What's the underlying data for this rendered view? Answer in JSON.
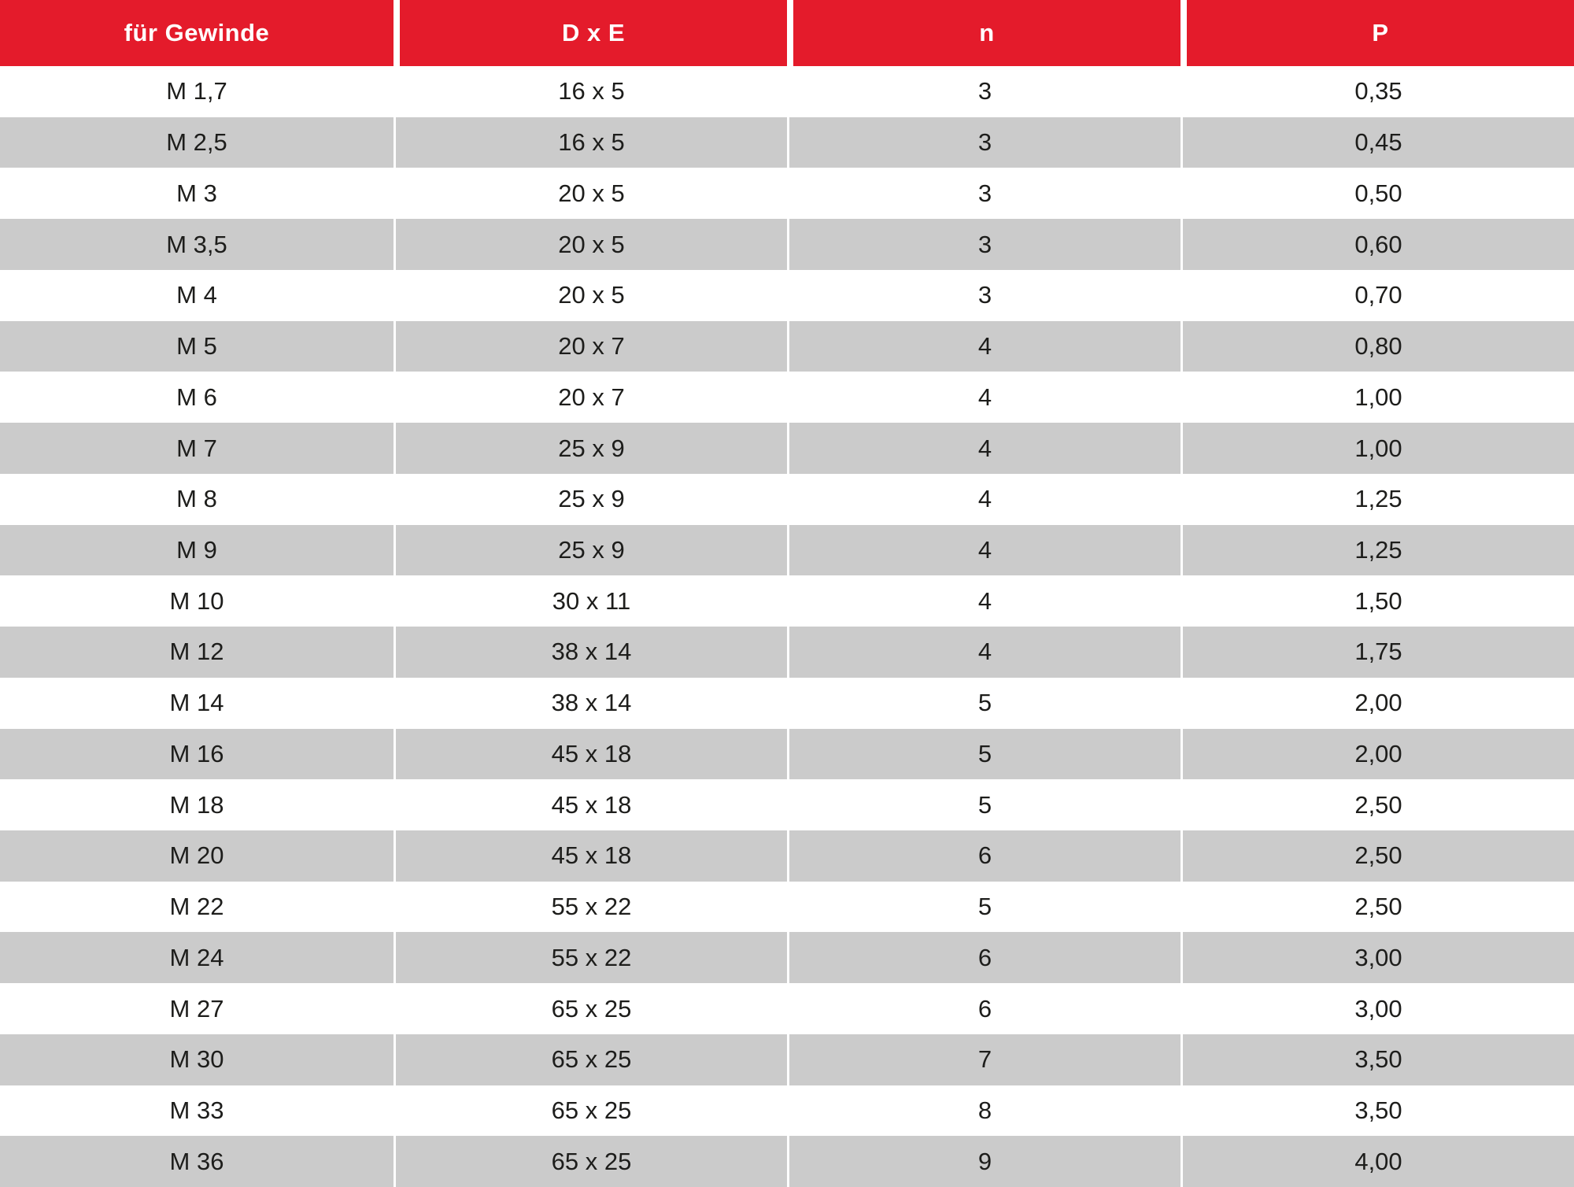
{
  "colors": {
    "header_bg": "#E41B2B",
    "header_text": "#FFFFFF",
    "row_alt_bg": "#CBCBCB",
    "row_bg": "#FFFFFF",
    "text": "#1D1D1B"
  },
  "table": {
    "columns": [
      "für Gewinde",
      "D x E",
      "n",
      "P"
    ],
    "column_keys": [
      "gewinde",
      "dxe",
      "n",
      "p"
    ],
    "rows": [
      [
        "M 1,7",
        "16 x 5",
        "3",
        "0,35"
      ],
      [
        "M 2,5",
        "16 x 5",
        "3",
        "0,45"
      ],
      [
        "M 3",
        "20 x 5",
        "3",
        "0,50"
      ],
      [
        "M 3,5",
        "20 x 5",
        "3",
        "0,60"
      ],
      [
        "M 4",
        "20 x 5",
        "3",
        "0,70"
      ],
      [
        "M 5",
        "20 x 7",
        "4",
        "0,80"
      ],
      [
        "M 6",
        "20 x 7",
        "4",
        "1,00"
      ],
      [
        "M 7",
        "25 x 9",
        "4",
        "1,00"
      ],
      [
        "M 8",
        "25 x 9",
        "4",
        "1,25"
      ],
      [
        "M 9",
        "25 x 9",
        "4",
        "1,25"
      ],
      [
        "M 10",
        "30 x 11",
        "4",
        "1,50"
      ],
      [
        "M 12",
        "38 x 14",
        "4",
        "1,75"
      ],
      [
        "M 14",
        "38 x 14",
        "5",
        "2,00"
      ],
      [
        "M 16",
        "45 x 18",
        "5",
        "2,00"
      ],
      [
        "M 18",
        "45 x 18",
        "5",
        "2,50"
      ],
      [
        "M 20",
        "45 x 18",
        "6",
        "2,50"
      ],
      [
        "M 22",
        "55 x 22",
        "5",
        "2,50"
      ],
      [
        "M 24",
        "55 x 22",
        "6",
        "3,00"
      ],
      [
        "M 27",
        "65 x 25",
        "6",
        "3,00"
      ],
      [
        "M 30",
        "65 x 25",
        "7",
        "3,50"
      ],
      [
        "M 33",
        "65 x 25",
        "8",
        "3,50"
      ],
      [
        "M 36",
        "65 x 25",
        "9",
        "4,00"
      ]
    ]
  },
  "chart_data": {
    "type": "table",
    "title": "",
    "columns": [
      "für Gewinde",
      "D x E",
      "n",
      "P"
    ],
    "rows": [
      [
        "M 1,7",
        "16 x 5",
        "3",
        "0,35"
      ],
      [
        "M 2,5",
        "16 x 5",
        "3",
        "0,45"
      ],
      [
        "M 3",
        "20 x 5",
        "3",
        "0,50"
      ],
      [
        "M 3,5",
        "20 x 5",
        "3",
        "0,60"
      ],
      [
        "M 4",
        "20 x 5",
        "3",
        "0,70"
      ],
      [
        "M 5",
        "20 x 7",
        "4",
        "0,80"
      ],
      [
        "M 6",
        "20 x 7",
        "4",
        "1,00"
      ],
      [
        "M 7",
        "25 x 9",
        "4",
        "1,00"
      ],
      [
        "M 8",
        "25 x 9",
        "4",
        "1,25"
      ],
      [
        "M 9",
        "25 x 9",
        "4",
        "1,25"
      ],
      [
        "M 10",
        "30 x 11",
        "4",
        "1,50"
      ],
      [
        "M 12",
        "38 x 14",
        "4",
        "1,75"
      ],
      [
        "M 14",
        "38 x 14",
        "5",
        "2,00"
      ],
      [
        "M 16",
        "45 x 18",
        "5",
        "2,00"
      ],
      [
        "M 18",
        "45 x 18",
        "5",
        "2,50"
      ],
      [
        "M 20",
        "45 x 18",
        "6",
        "2,50"
      ],
      [
        "M 22",
        "55 x 22",
        "5",
        "2,50"
      ],
      [
        "M 24",
        "55 x 22",
        "6",
        "3,00"
      ],
      [
        "M 27",
        "65 x 25",
        "6",
        "3,00"
      ],
      [
        "M 30",
        "65 x 25",
        "7",
        "3,50"
      ],
      [
        "M 33",
        "65 x 25",
        "8",
        "3,50"
      ],
      [
        "M 36",
        "65 x 25",
        "9",
        "4,00"
      ]
    ]
  }
}
